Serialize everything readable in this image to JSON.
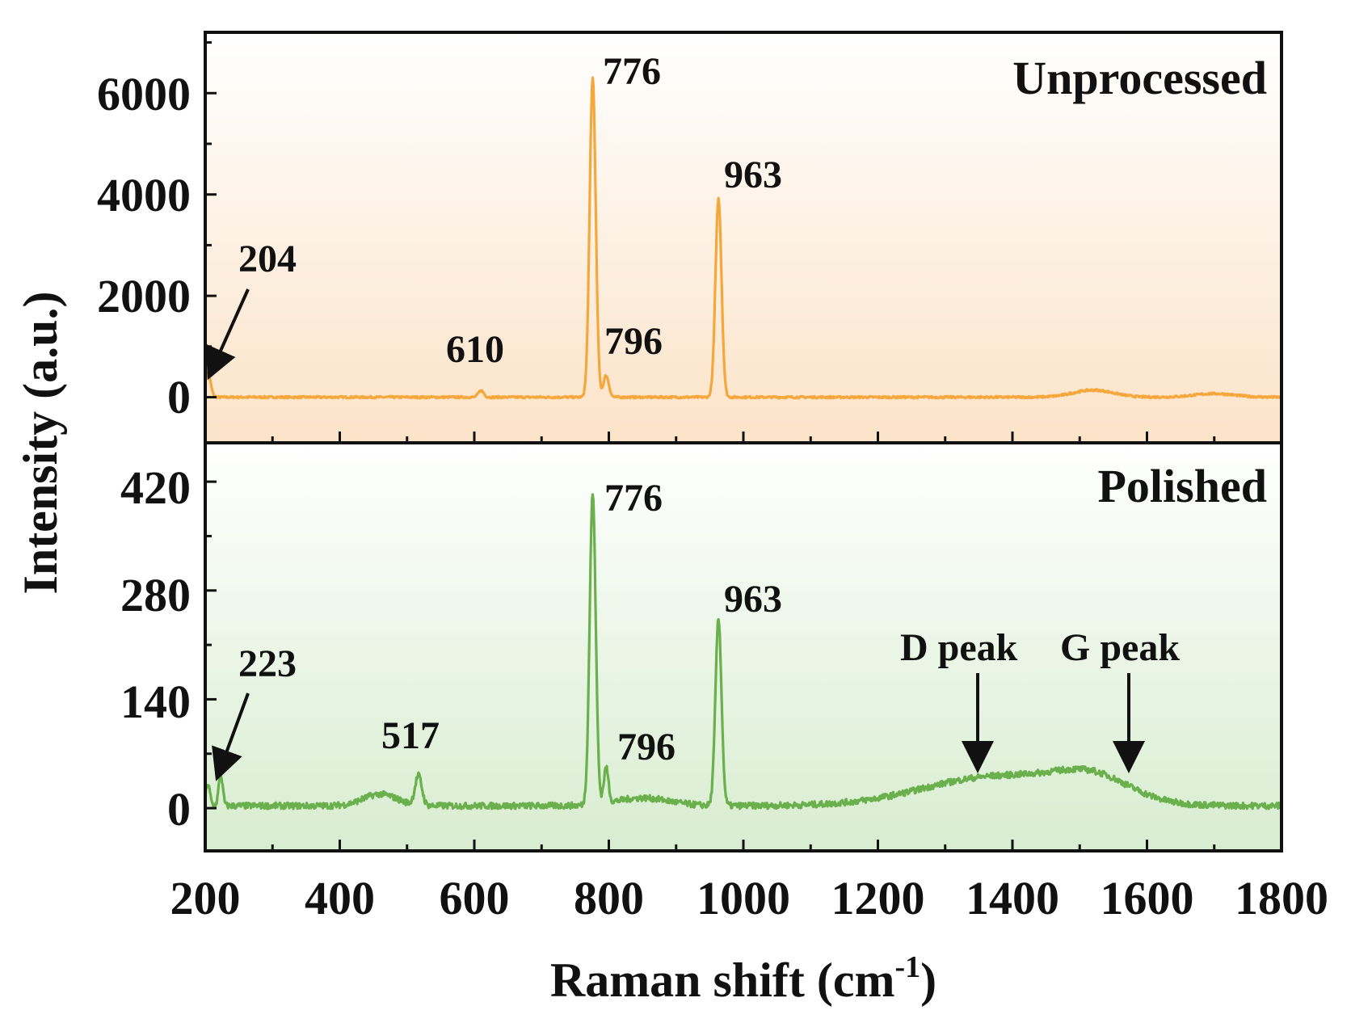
{
  "chart_data": {
    "type": "line",
    "xlabel": "Raman shift (cm",
    "xlabel_sup": "-1",
    "xlabel_end": ")",
    "ylabel": "Intensity (a.u.)",
    "xlim": [
      200,
      1800
    ],
    "x_ticks": [
      "200",
      "400",
      "600",
      "800",
      "1000",
      "1200",
      "1400",
      "1600",
      "1800"
    ],
    "panels": [
      {
        "name": "Unprocessed",
        "title": "Unprocessed",
        "color": "#F5A73C",
        "fill_color": "#FBE3C8",
        "ylim": [
          -900,
          7200
        ],
        "y_ticks": [
          "0",
          "2000",
          "4000",
          "6000"
        ],
        "baseline": 0,
        "peaks": [
          {
            "x": 204,
            "height": 480,
            "width": 4
          },
          {
            "x": 610,
            "height": 130,
            "width": 4
          },
          {
            "x": 776,
            "height": 6300,
            "width": 4.5
          },
          {
            "x": 796,
            "height": 430,
            "width": 4
          },
          {
            "x": 963,
            "height": 3920,
            "width": 4.5
          },
          {
            "x": 1520,
            "height": 140,
            "width": 30
          },
          {
            "x": 1700,
            "height": 70,
            "width": 30
          }
        ],
        "noise": 20,
        "labels": [
          "204",
          "610",
          "776",
          "796",
          "963"
        ]
      },
      {
        "name": "Polished",
        "title": "Polished",
        "color": "#6AB04C",
        "fill_color": "#D8EDD0",
        "ylim": [
          -55,
          470
        ],
        "y_ticks": [
          "0",
          "140",
          "280",
          "420"
        ],
        "baseline": 3,
        "peaks": [
          {
            "x": 204,
            "height": 28,
            "width": 3
          },
          {
            "x": 223,
            "height": 40,
            "width": 3
          },
          {
            "x": 460,
            "height": 15,
            "width": 25
          },
          {
            "x": 517,
            "height": 38,
            "width": 5
          },
          {
            "x": 776,
            "height": 400,
            "width": 4.5
          },
          {
            "x": 796,
            "height": 45,
            "width": 3.5
          },
          {
            "x": 850,
            "height": 10,
            "width": 40
          },
          {
            "x": 963,
            "height": 240,
            "width": 4.5
          },
          {
            "x": 1380,
            "height": 38,
            "width": 110
          },
          {
            "x": 1520,
            "height": 28,
            "width": 55
          }
        ],
        "noise": 4,
        "labels": [
          "223",
          "517",
          "776",
          "796",
          "963",
          "D peak",
          "G peak"
        ]
      }
    ]
  }
}
